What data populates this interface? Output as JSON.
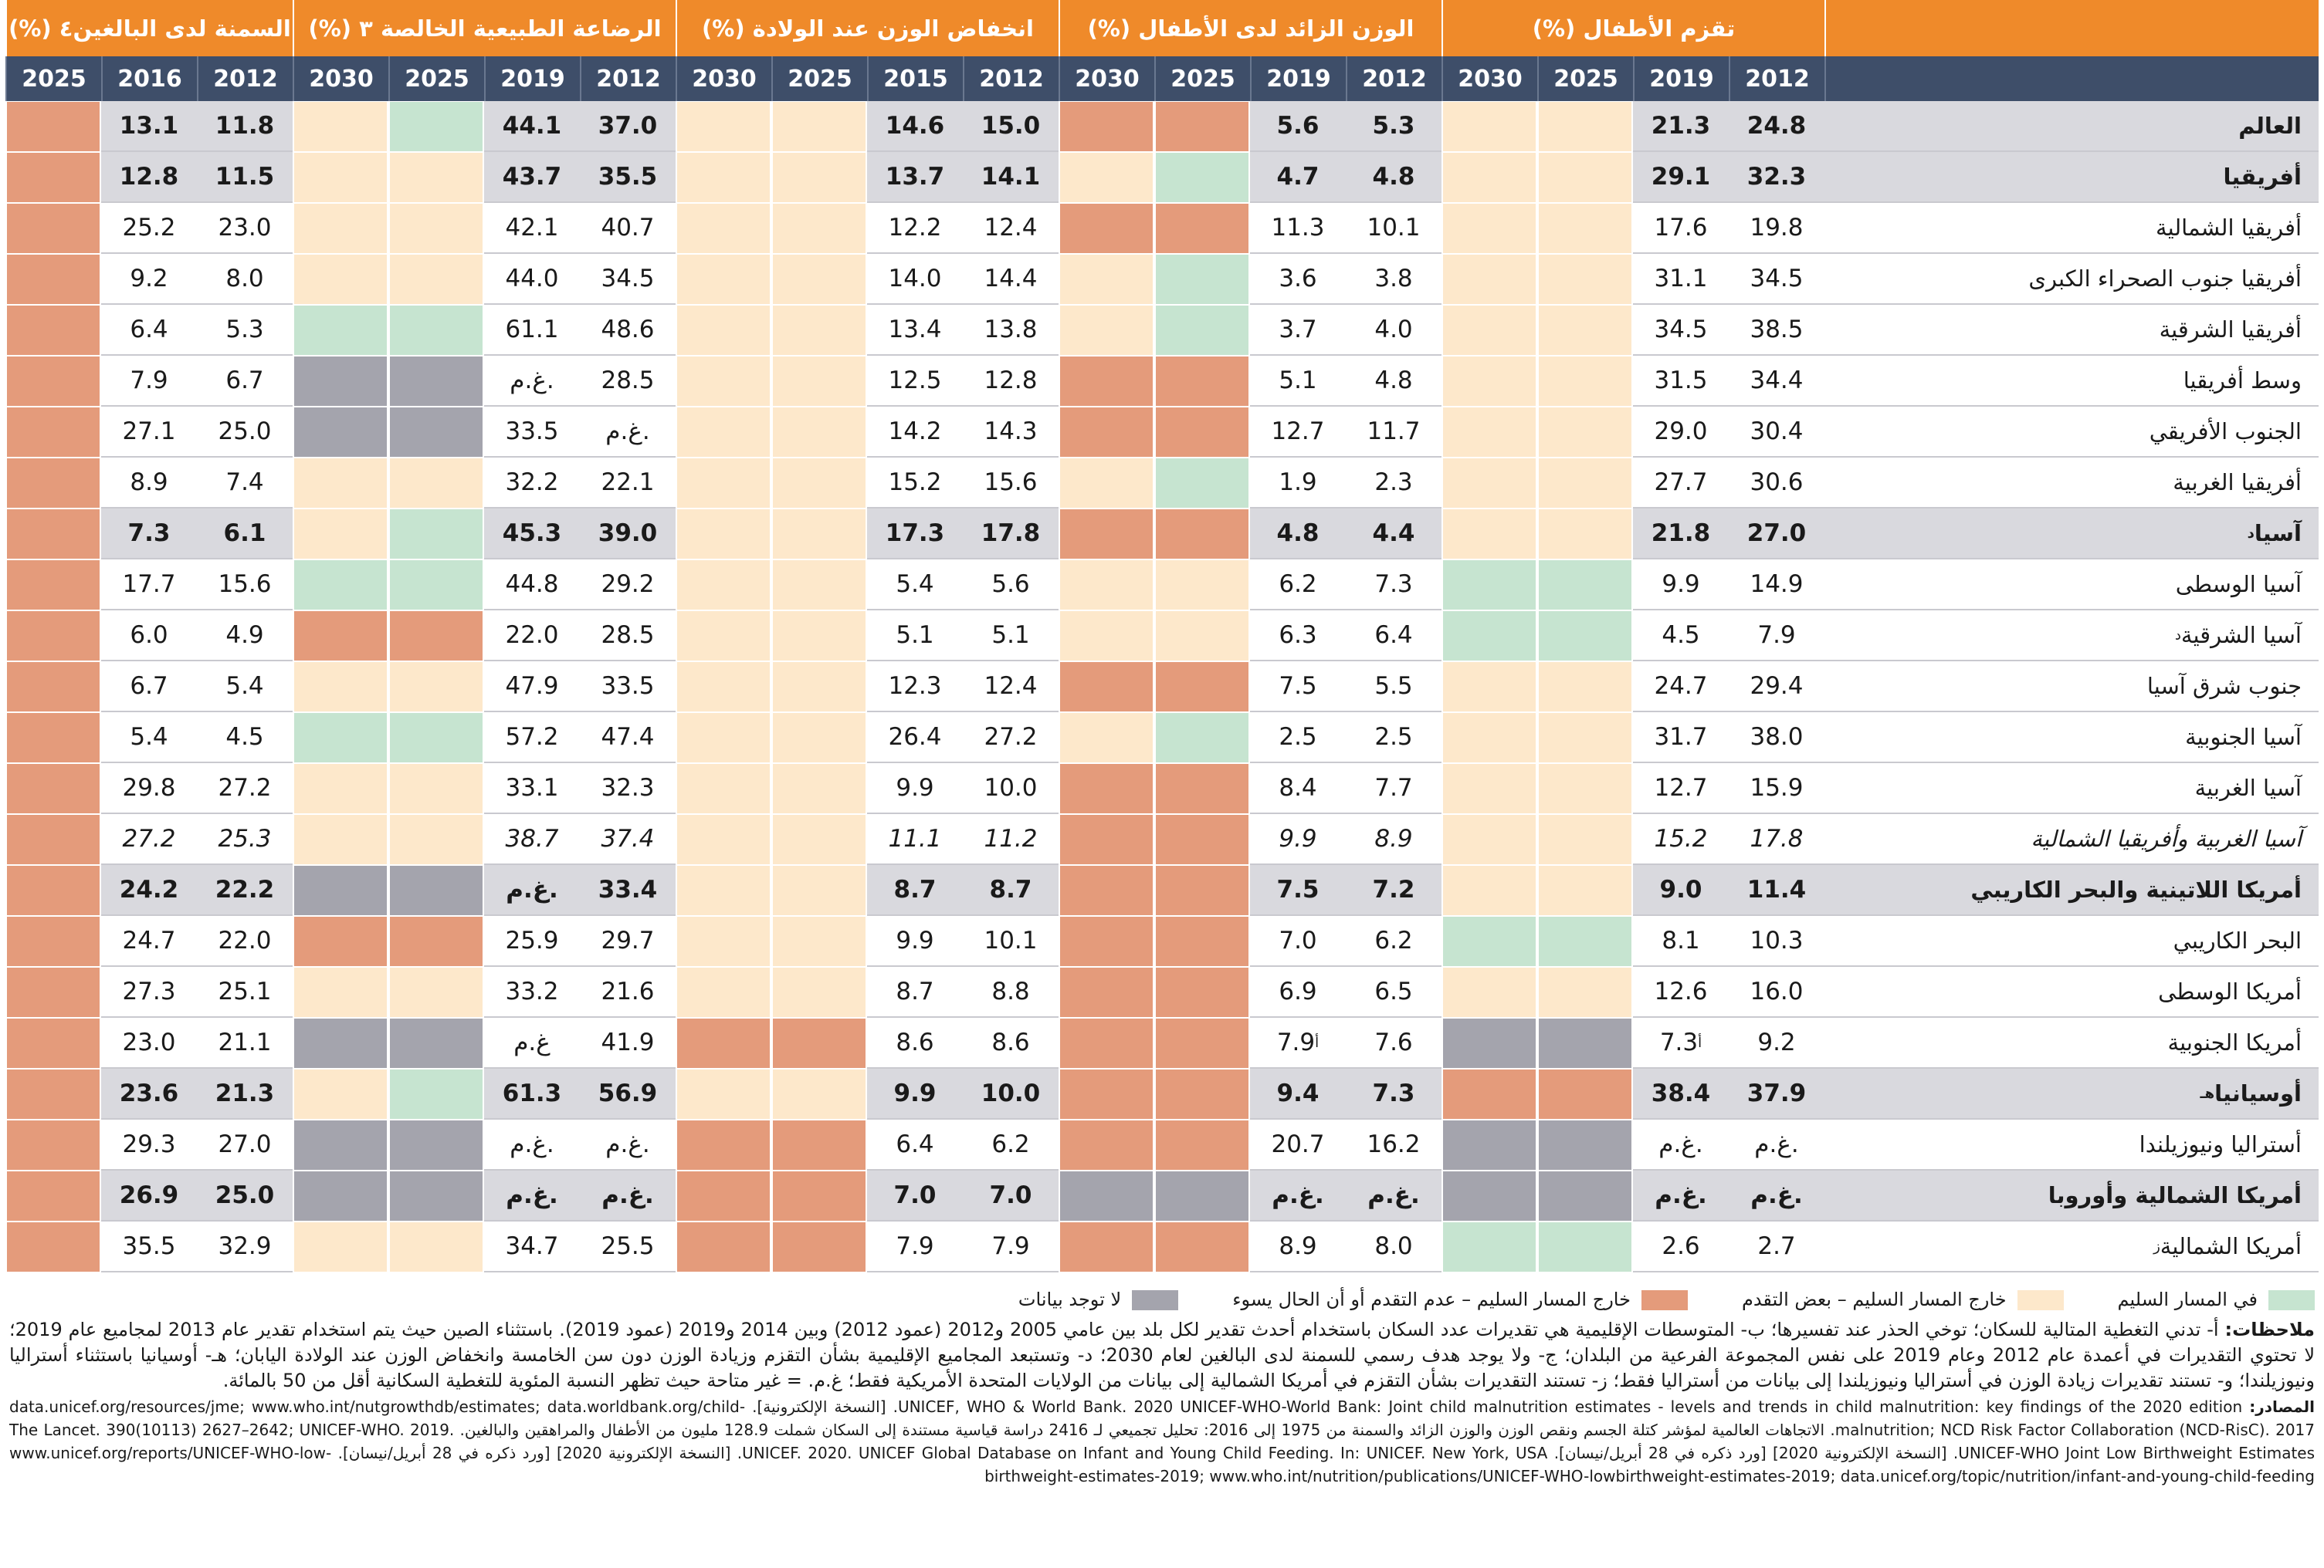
{
  "table": {
    "groups": [
      {
        "title": "تقزم الأطفال (%)",
        "years": [
          2012,
          2019,
          2025,
          2030
        ]
      },
      {
        "title": "الوزن الزائد لدى الأطفال (%)",
        "years": [
          2012,
          2019,
          2025,
          2030
        ]
      },
      {
        "title": "انخفاض الوزن عند الولادة (%)",
        "years": [
          2012,
          2015,
          2025,
          2030
        ]
      },
      {
        "title": "الرضاعة الطبيعية الخالصة ٣ (%)",
        "years": [
          2012,
          2019,
          2025,
          2030
        ]
      },
      {
        "title": "السمنة لدى البالغين٤ (%)",
        "years": [
          2012,
          2016,
          2025
        ]
      }
    ],
    "rows": [
      {
        "name": "العالم",
        "bold": true,
        "values": [
          "24.8",
          "21.3",
          "5.3",
          "5.6",
          "15.0",
          "14.6",
          "37.0",
          "44.1",
          "11.8",
          "13.1"
        ],
        "status": [
          1,
          1,
          2,
          2,
          1,
          1,
          0,
          1,
          2
        ]
      },
      {
        "name": "أفريقيا",
        "bold": true,
        "values": [
          "32.3",
          "29.1",
          "4.8",
          "4.7",
          "14.1",
          "13.7",
          "35.5",
          "43.7",
          "11.5",
          "12.8"
        ],
        "status": [
          1,
          1,
          0,
          1,
          1,
          1,
          1,
          1,
          2
        ]
      },
      {
        "name": "أفريقيا الشمالية",
        "values": [
          "19.8",
          "17.6",
          "10.1",
          "11.3",
          "12.4",
          "12.2",
          "40.7",
          "42.1",
          "23.0",
          "25.2"
        ],
        "status": [
          1,
          1,
          2,
          2,
          1,
          1,
          1,
          1,
          2
        ]
      },
      {
        "name": "أفريقيا جنوب الصحراء الكبرى",
        "values": [
          "34.5",
          "31.1",
          "3.8",
          "3.6",
          "14.4",
          "14.0",
          "34.5",
          "44.0",
          "8.0",
          "9.2"
        ],
        "status": [
          1,
          1,
          0,
          1,
          1,
          1,
          1,
          1,
          2
        ]
      },
      {
        "name": "أفريقيا الشرقية",
        "values": [
          "38.5",
          "34.5",
          "4.0",
          "3.7",
          "13.8",
          "13.4",
          "48.6",
          "61.1",
          "5.3",
          "6.4"
        ],
        "status": [
          1,
          1,
          0,
          1,
          1,
          1,
          0,
          0,
          2
        ]
      },
      {
        "name": "وسط أفريقيا",
        "values": [
          "34.4",
          "31.5",
          "4.8",
          "5.1",
          "12.8",
          "12.5",
          "28.5",
          "غ.م.",
          "6.7",
          "7.9"
        ],
        "status": [
          1,
          1,
          2,
          2,
          1,
          1,
          3,
          3,
          2
        ]
      },
      {
        "name": "الجنوب الأفريقي",
        "values": [
          "30.4",
          "29.0",
          "11.7",
          "12.7",
          "14.3",
          "14.2",
          "غ.م.",
          "33.5",
          "25.0",
          "27.1"
        ],
        "status": [
          1,
          1,
          2,
          2,
          1,
          1,
          3,
          3,
          2
        ]
      },
      {
        "name": "أفريقيا الغربية",
        "values": [
          "30.6",
          "27.7",
          "2.3",
          "1.9",
          "15.6",
          "15.2",
          "22.1",
          "32.2",
          "7.4",
          "8.9"
        ],
        "status": [
          1,
          1,
          0,
          1,
          1,
          1,
          1,
          1,
          2
        ]
      },
      {
        "name": "آسيا",
        "footnote": "د",
        "bold": true,
        "values": [
          "27.0",
          "21.8",
          "4.4",
          "4.8",
          "17.8",
          "17.3",
          "39.0",
          "45.3",
          "6.1",
          "7.3"
        ],
        "status": [
          1,
          1,
          2,
          2,
          1,
          1,
          0,
          1,
          2
        ]
      },
      {
        "name": "آسيا الوسطى",
        "values": [
          "14.9",
          "9.9",
          "7.3",
          "6.2",
          "5.6",
          "5.4",
          "29.2",
          "44.8",
          "15.6",
          "17.7"
        ],
        "status": [
          0,
          0,
          1,
          1,
          1,
          1,
          0,
          0,
          2
        ]
      },
      {
        "name": "آسيا الشرقية",
        "footnote": "د",
        "values": [
          "7.9",
          "4.5",
          "6.4",
          "6.3",
          "5.1",
          "5.1",
          "28.5",
          "22.0",
          "4.9",
          "6.0"
        ],
        "status": [
          0,
          0,
          1,
          1,
          1,
          1,
          2,
          2,
          2
        ]
      },
      {
        "name": "جنوب شرق آسيا",
        "values": [
          "29.4",
          "24.7",
          "5.5",
          "7.5",
          "12.4",
          "12.3",
          "33.5",
          "47.9",
          "5.4",
          "6.7"
        ],
        "status": [
          1,
          1,
          2,
          2,
          1,
          1,
          1,
          1,
          2
        ]
      },
      {
        "name": "آسيا الجنوبية",
        "values": [
          "38.0",
          "31.7",
          "2.5",
          "2.5",
          "27.2",
          "26.4",
          "47.4",
          "57.2",
          "4.5",
          "5.4"
        ],
        "status": [
          1,
          1,
          0,
          1,
          1,
          1,
          0,
          0,
          2
        ]
      },
      {
        "name": "آسيا الغربية",
        "values": [
          "15.9",
          "12.7",
          "7.7",
          "8.4",
          "10.0",
          "9.9",
          "32.3",
          "33.1",
          "27.2",
          "29.8"
        ],
        "status": [
          1,
          1,
          2,
          2,
          1,
          1,
          1,
          1,
          2
        ]
      },
      {
        "name": "آسيا الغربية وأفريقيا الشمالية",
        "italic": true,
        "values": [
          "17.8",
          "15.2",
          "8.9",
          "9.9",
          "11.2",
          "11.1",
          "37.4",
          "38.7",
          "25.3",
          "27.2"
        ],
        "status": [
          1,
          1,
          2,
          2,
          1,
          1,
          1,
          1,
          2
        ]
      },
      {
        "name": "أمريكا اللاتينية والبحر الكاريبي",
        "bold": true,
        "values": [
          "11.4",
          "9.0",
          "7.2",
          "7.5",
          "8.7",
          "8.7",
          "33.4",
          "غ.م.",
          "22.2",
          "24.2"
        ],
        "status": [
          1,
          1,
          2,
          2,
          1,
          1,
          3,
          3,
          2
        ]
      },
      {
        "name": "البحر الكاريبي",
        "values": [
          "10.3",
          "8.1",
          "6.2",
          "7.0",
          "10.1",
          "9.9",
          "29.7",
          "25.9",
          "22.0",
          "24.7"
        ],
        "status": [
          0,
          0,
          2,
          2,
          1,
          1,
          2,
          2,
          2
        ]
      },
      {
        "name": "أمريكا الوسطى",
        "values": [
          "16.0",
          "12.6",
          "6.5",
          "6.9",
          "8.8",
          "8.7",
          "21.6",
          "33.2",
          "25.1",
          "27.3"
        ],
        "status": [
          1,
          1,
          2,
          2,
          1,
          1,
          1,
          1,
          2
        ]
      },
      {
        "name": "أمريكا الجنوبية",
        "values": [
          "9.2",
          {
            "text": "7.3",
            "footnote": "أ"
          },
          "7.6",
          {
            "text": "7.9",
            "footnote": "أ"
          },
          "8.6",
          "8.6",
          "41.9",
          "غ.م",
          "21.1",
          "23.0"
        ],
        "status": [
          3,
          3,
          2,
          2,
          2,
          2,
          3,
          3,
          2
        ]
      },
      {
        "name": "أوسيانيا",
        "footnote": "هـ",
        "bold": true,
        "values": [
          "37.9",
          "38.4",
          "7.3",
          "9.4",
          "10.0",
          "9.9",
          "56.9",
          "61.3",
          "21.3",
          "23.6"
        ],
        "status": [
          2,
          2,
          2,
          2,
          1,
          1,
          0,
          1,
          2
        ]
      },
      {
        "name": "أستراليا ونيوزيلندا",
        "values": [
          "غ.م.",
          "غ.م.",
          "16.2",
          "20.7",
          "6.2",
          "6.4",
          "غ.م.",
          "غ.م.",
          "27.0",
          "29.3"
        ],
        "status": [
          3,
          3,
          2,
          2,
          2,
          2,
          3,
          3,
          2
        ]
      },
      {
        "name": "أمريكا الشمالية وأوروبا",
        "bold": true,
        "values": [
          "غ.م.",
          "غ.م.",
          "غ.م.",
          "غ.م.",
          "7.0",
          "7.0",
          "غ.م.",
          "غ.م.",
          "25.0",
          "26.9"
        ],
        "status": [
          3,
          3,
          3,
          3,
          2,
          2,
          3,
          3,
          2
        ]
      },
      {
        "name": "أمريكا الشمالية",
        "footnote": "ز",
        "values": [
          "2.7",
          "2.6",
          "8.0",
          "8.9",
          "7.9",
          "7.9",
          "25.5",
          "34.7",
          "32.9",
          "35.5"
        ],
        "status": [
          0,
          0,
          2,
          2,
          2,
          2,
          1,
          1,
          2
        ]
      }
    ]
  },
  "legend": [
    {
      "label": "في المسار السليم",
      "color": "#c6e4d0"
    },
    {
      "label": "خارج المسار السليم – بعض التقدم",
      "color": "#fde8cb"
    },
    {
      "label": "خارج المسار السليم – عدم التقدم أو أن الحال يسوء",
      "color": "#e49b7b"
    },
    {
      "label": "لا توجد بيانات",
      "color": "#a4a4ad"
    }
  ],
  "notes": {
    "label": "ملاحظات:",
    "text": "أ- تدني التغطية المتالية للسكان؛ توخي الحذر عند تفسيرها؛ ب- المتوسطات الإقليمية هي تقديرات عدد السكان باستخدام أحدث تقدير لكل بلد بين عامي 2005 و2012 (عمود 2012) وبين 2014 و2019 (عمود 2019). باستثناء الصين حيث يتم استخدام تقدير عام 2013 لمجاميع عام 2019؛ لا تحتوي التقديرات في أعمدة عام 2012 وعام 2019 على نفس المجموعة الفرعية من البلدان؛ ج- ولا يوجد هدف رسمي للسمنة لدى البالغين لعام 2030؛ د- وتستبعد المجاميع الإقليمية بشأن التقزم وزيادة الوزن دون سن الخامسة وانخفاض الوزن عند الولادة اليابان؛ هـ- أوسيانيا باستثناء أستراليا ونيوزيلندا؛ و- تستند تقديرات زيادة الوزن في أستراليا ونيوزيلندا إلى بيانات من أستراليا فقط؛ ز- تستند التقديرات بشأن التقزم في أمريكا الشمالية إلى بيانات من الولايات المتحدة الأمريكية فقط؛ غ.م. = غير متاحة حيث تظهر النسبة المئوية للتغطية السكانية أقل من 50 بالمائة."
  },
  "sources": {
    "label": "المصادر:",
    "text": "UNICEF, WHO & World Bank. 2020 UNICEF-WHO-World Bank: Joint child malnutrition estimates - levels and trends in child malnutrition: key findings of the 2020 edition. [النسخة الإلكترونية]. data.unicef.org/resources/jme; www.who.int/nutgrowthdb/estimates; data.worldbank.org/child-malnutrition; NCD Risk Factor Collaboration (NCD-RisC). 2017. الاتجاهات العالمية لمؤشر كتلة الجسم ونقص الوزن والوزن الزائد والسمنة من 1975 إلى 2016: تحليل تجميعي لـ 2416 دراسة قياسية مستندة إلى السكان شملت 128.9 مليون من الأطفال والمراهقين والبالغين. The Lancet. 390(10113) 2627–2642; UNICEF-WHO. 2019. UNICEF-WHO Joint Low Birthweight Estimates. [النسخة الإلكترونية 2020] [ورد ذكره في 28 أبريل/نيسان]. UNICEF. 2020. UNICEF Global Database on Infant and Young Child Feeding. In: UNICEF. New York, USA. [النسخة الإلكترونية 2020] [ورد ذكره في 28 أبريل/نيسان]. www.unicef.org/reports/UNICEF-WHO-low-birthweight-estimates-2019; www.who.int/nutrition/publications/UNICEF-WHO-lowbirthweight-estimates-2019; data.unicef.org/topic/nutrition/infant-and-young-child-feeding"
  }
}
